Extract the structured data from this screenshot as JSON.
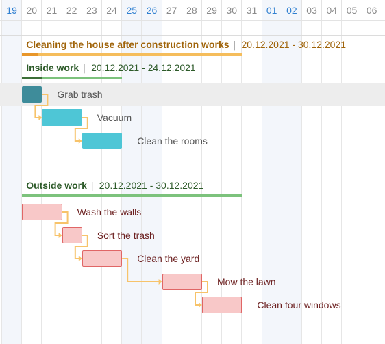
{
  "timeline": {
    "days": [
      {
        "label": "19",
        "weekend": true
      },
      {
        "label": "20",
        "weekend": false
      },
      {
        "label": "21",
        "weekend": false
      },
      {
        "label": "22",
        "weekend": false
      },
      {
        "label": "23",
        "weekend": false
      },
      {
        "label": "24",
        "weekend": false
      },
      {
        "label": "25",
        "weekend": true
      },
      {
        "label": "26",
        "weekend": true
      },
      {
        "label": "27",
        "weekend": false
      },
      {
        "label": "28",
        "weekend": false
      },
      {
        "label": "29",
        "weekend": false
      },
      {
        "label": "30",
        "weekend": false
      },
      {
        "label": "31",
        "weekend": false
      },
      {
        "label": "01",
        "weekend": true
      },
      {
        "label": "02",
        "weekend": true
      },
      {
        "label": "03",
        "weekend": false
      },
      {
        "label": "04",
        "weekend": false
      },
      {
        "label": "05",
        "weekend": false
      },
      {
        "label": "06",
        "weekend": false
      }
    ]
  },
  "project": {
    "name": "Cleaning the house after construction works",
    "dates": "20.12.2021 - 30.12.2021",
    "start_day": 1,
    "end_day": 12,
    "progress": 0.07,
    "name_color": "#a0640a",
    "bar_color": "#f5bd5c",
    "progress_color": "#e8962a"
  },
  "groups": [
    {
      "name": "Inside work",
      "dates": "20.12.2021 - 24.12.2021",
      "start_day": 1,
      "end_day": 6,
      "progress": 0.2,
      "name_color": "#2e5b2a",
      "bar_color": "#7cc27c",
      "progress_color": "#3c6f37",
      "tasks": [
        {
          "name": "Grab trash",
          "start_day": 1,
          "end_day": 2,
          "fill": "#3e8c9a",
          "border": "#3e8c9a",
          "highlighted": true
        },
        {
          "name": "Vacuum",
          "start_day": 2,
          "end_day": 4,
          "fill": "#4ec6d6",
          "border": "#4ec6d6",
          "highlighted": false
        },
        {
          "name": "Clean the rooms",
          "start_day": 4,
          "end_day": 6,
          "fill": "#4ec6d6",
          "border": "#4ec6d6",
          "highlighted": false
        }
      ]
    },
    {
      "name": "Outside work",
      "dates": "20.12.2021 - 30.12.2021",
      "start_day": 1,
      "end_day": 12,
      "progress": 0,
      "name_color": "#2e5b2a",
      "bar_color": "#7cc27c",
      "progress_color": "#3c6f37",
      "tasks": [
        {
          "name": "Wash the walls",
          "start_day": 1,
          "end_day": 3,
          "fill": "#f8c8c8",
          "border": "#e06666",
          "highlighted": false
        },
        {
          "name": "Sort the trash",
          "start_day": 3,
          "end_day": 4,
          "fill": "#f8c8c8",
          "border": "#e06666",
          "highlighted": false
        },
        {
          "name": "Clean the yard",
          "start_day": 4,
          "end_day": 6,
          "fill": "#f8c8c8",
          "border": "#e06666",
          "highlighted": false
        },
        {
          "name": "Mow the lawn",
          "start_day": 8,
          "end_day": 10,
          "fill": "#f8c8c8",
          "border": "#e06666",
          "highlighted": false
        },
        {
          "name": "Clean four windows",
          "start_day": 10,
          "end_day": 12,
          "fill": "#f8c8c8",
          "border": "#e06666",
          "highlighted": false
        }
      ]
    }
  ],
  "colors": {
    "link": "#f7c36a",
    "task_text_inside": "#555555",
    "task_text_outside": "#6b1f1f",
    "highlight_row": "#ededed"
  }
}
